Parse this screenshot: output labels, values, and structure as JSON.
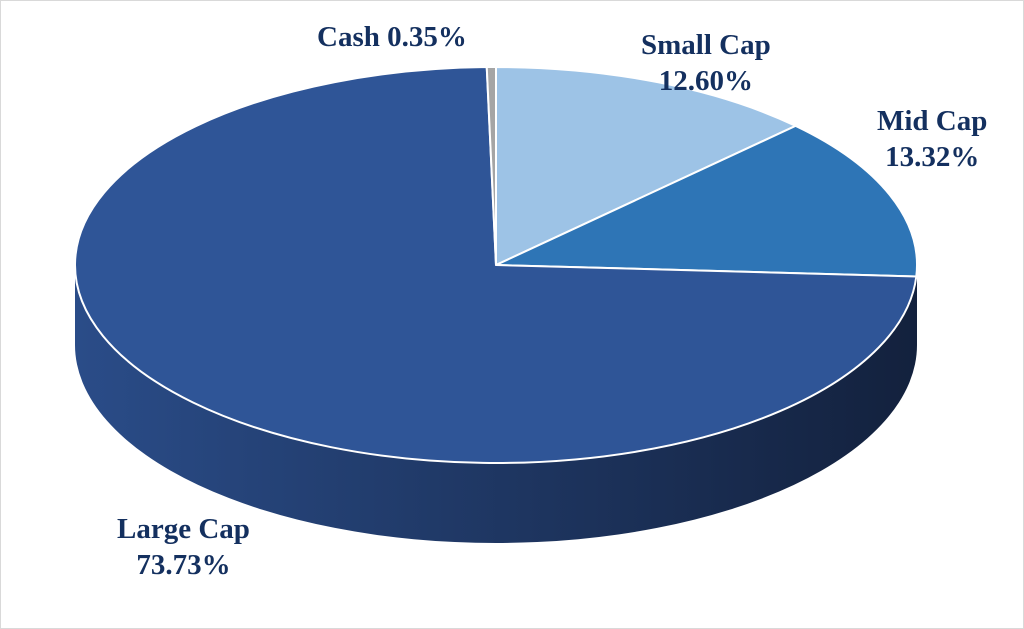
{
  "chart_data": {
    "type": "pie",
    "style": "3d",
    "start": "top, clockwise",
    "slices": [
      {
        "name": "Small Cap",
        "value": 12.6,
        "label": "12.60%",
        "color": "#9dc3e6"
      },
      {
        "name": "Mid Cap",
        "value": 13.32,
        "label": "13.32%",
        "color": "#2e75b6"
      },
      {
        "name": "Large Cap",
        "value": 73.73,
        "label": "73.73%",
        "color": "#2f5597"
      },
      {
        "name": "Cash",
        "value": 0.35,
        "label": "0.35%",
        "color": "#a5a5a5"
      }
    ],
    "side_colors": [
      "#2a4c88",
      "#13213d"
    ]
  }
}
